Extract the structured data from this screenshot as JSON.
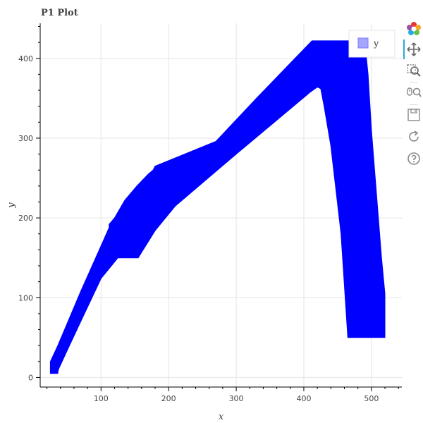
{
  "title": "P1 Plot",
  "chart_data": {
    "type": "area",
    "title": "P1 Plot",
    "xlabel": "x",
    "ylabel": "y",
    "xlim": [
      10,
      545
    ],
    "ylim": [
      -12,
      444
    ],
    "x_ticks": [
      100,
      200,
      300,
      400,
      500
    ],
    "y_ticks": [
      0,
      100,
      200,
      300,
      400
    ],
    "grid": true,
    "legend": {
      "position": "top-right",
      "entries": [
        {
          "label": "y",
          "color": "#a6a6ff"
        }
      ]
    },
    "series": [
      {
        "name": "y",
        "color": "#0000ff",
        "polygon": [
          [
            25,
            5
          ],
          [
            36,
            5
          ],
          [
            37,
            10
          ],
          [
            50,
            34
          ],
          [
            70,
            70
          ],
          [
            100,
            124
          ],
          [
            125,
            150
          ],
          [
            155,
            150
          ],
          [
            180,
            184
          ],
          [
            210,
            215
          ],
          [
            300,
            280
          ],
          [
            410,
            358
          ],
          [
            420,
            364
          ],
          [
            425,
            362
          ],
          [
            430,
            340
          ],
          [
            440,
            290
          ],
          [
            455,
            180
          ],
          [
            465,
            50
          ],
          [
            520,
            50
          ],
          [
            520,
            105
          ],
          [
            515,
            150
          ],
          [
            500,
            310
          ],
          [
            495,
            380
          ],
          [
            490,
            422
          ],
          [
            460,
            422
          ],
          [
            412,
            422
          ],
          [
            380,
            394
          ],
          [
            330,
            350
          ],
          [
            270,
            296
          ],
          [
            180,
            265
          ],
          [
            177,
            260
          ],
          [
            170,
            255
          ],
          [
            153,
            240
          ],
          [
            135,
            222
          ],
          [
            120,
            200
          ],
          [
            112,
            192
          ],
          [
            112,
            188
          ],
          [
            100,
            165
          ],
          [
            70,
            108
          ],
          [
            50,
            68
          ],
          [
            35,
            38
          ],
          [
            25,
            20
          ]
        ]
      }
    ]
  },
  "toolbar": {
    "tools": [
      {
        "name": "bokeh-logo-icon"
      },
      {
        "name": "pan-icon"
      },
      {
        "name": "box-zoom-icon"
      },
      {
        "name": "wheel-zoom-icon"
      },
      {
        "name": "save-icon"
      },
      {
        "name": "reset-icon"
      },
      {
        "name": "help-icon"
      }
    ]
  }
}
